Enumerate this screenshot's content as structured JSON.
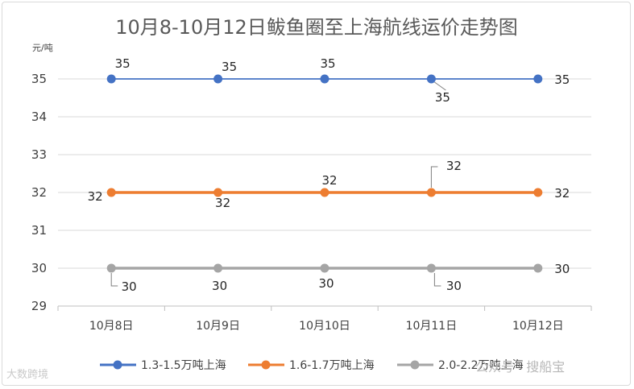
{
  "chart_data": {
    "type": "line",
    "title": "10月8-10月12日鲅鱼圈至上海航线运价走势图",
    "unit_label": "元/吨",
    "categories": [
      "10月8日",
      "10月9日",
      "10月10日",
      "10月11日",
      "10月12日"
    ],
    "ylim": [
      29,
      35
    ],
    "yticks": [
      29,
      30,
      31,
      32,
      33,
      34,
      35
    ],
    "grid": true,
    "legend_position": "bottom",
    "series": [
      {
        "name": "1.3-1.5万吨上海",
        "color": "#4472c4",
        "values": [
          35,
          35,
          35,
          35,
          35
        ]
      },
      {
        "name": "1.6-1.7万吨上海",
        "color": "#ed7d31",
        "values": [
          32,
          32,
          32,
          32,
          32
        ]
      },
      {
        "name": "2.0-2.2万吨上海",
        "color": "#a5a5a5",
        "values": [
          30,
          30,
          30,
          30,
          30
        ]
      }
    ]
  },
  "watermarks": {
    "left": "大数跨境",
    "right": "公众号 · 搜船宝"
  }
}
